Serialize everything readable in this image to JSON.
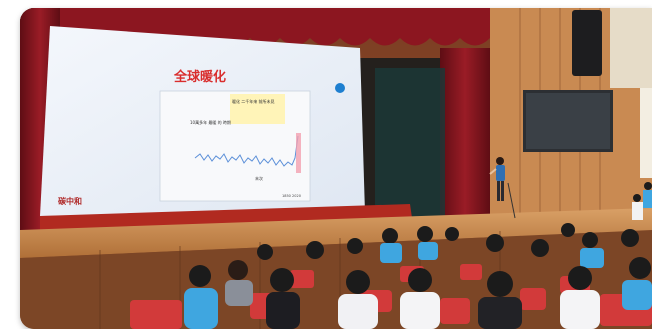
{
  "scene": {
    "description_tag": "school-hall-presentation",
    "colors": {
      "wood_wall": "#8a4a2a",
      "curtain": "#8c1620",
      "stage_floor": "#c58a4a",
      "screen_light": "#eef3fa",
      "seat_red": "#d23a3a",
      "uniform_blue": "#3fa6e0"
    }
  },
  "slide": {
    "title": "全球暖化",
    "logo_text": "碳中和",
    "chart_note_top": "暖化 二千年來 前所未見",
    "chart_note_left": "10萬多年 最暖 的 時期",
    "chart_note_bottom": "末次",
    "axis_end": "1850 2020"
  }
}
